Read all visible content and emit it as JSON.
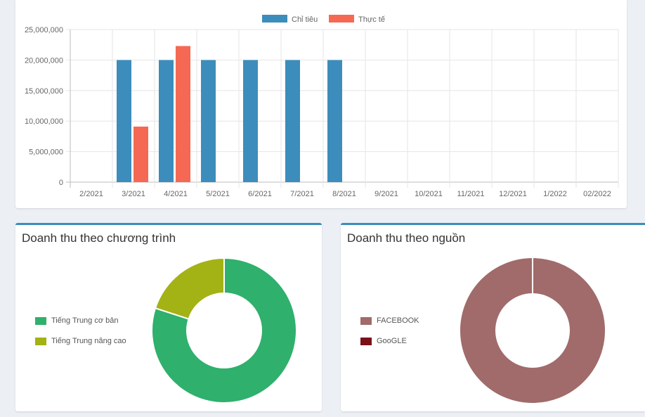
{
  "bar_chart": {
    "tick_labels": [
      "0",
      "5,000,000",
      "10,000,000",
      "15,000,000",
      "20,000,000",
      "25,000,000"
    ]
  },
  "program_card": {
    "title": "Doanh thu theo chương trình"
  },
  "source_card": {
    "title": "Doanh thu theo nguồn"
  },
  "chart_data": [
    {
      "type": "bar",
      "categories": [
        "2/2021",
        "3/2021",
        "4/2021",
        "5/2021",
        "6/2021",
        "7/2021",
        "8/2021",
        "9/2021",
        "10/2021",
        "11/2021",
        "12/2021",
        "1/2022",
        "02/2022"
      ],
      "series": [
        {
          "name": "Chỉ tiêu",
          "color": "#3c8dbc",
          "values": [
            0,
            20000000,
            20000000,
            20000000,
            20000000,
            20000000,
            20000000,
            0,
            0,
            0,
            0,
            0,
            0
          ]
        },
        {
          "name": "Thực tế",
          "color": "#f56954",
          "values": [
            0,
            9100000,
            22300000,
            0,
            0,
            0,
            0,
            0,
            0,
            0,
            0,
            0,
            0
          ]
        }
      ],
      "ylim": [
        0,
        25000000
      ],
      "grid": true,
      "legend": "top"
    },
    {
      "type": "pie",
      "donut": true,
      "labels": [
        "Tiếng Trung cơ bản",
        "Tiếng Trung nâng cao"
      ],
      "values": [
        80,
        20
      ],
      "colors": [
        "#2fb06c",
        "#a3b214"
      ],
      "legend": "left"
    },
    {
      "type": "pie",
      "donut": true,
      "labels": [
        "FACEBOOK",
        "GooGLE"
      ],
      "values": [
        100,
        0
      ],
      "colors": [
        "#a06b6a",
        "#7a1118"
      ],
      "legend": "left"
    }
  ]
}
